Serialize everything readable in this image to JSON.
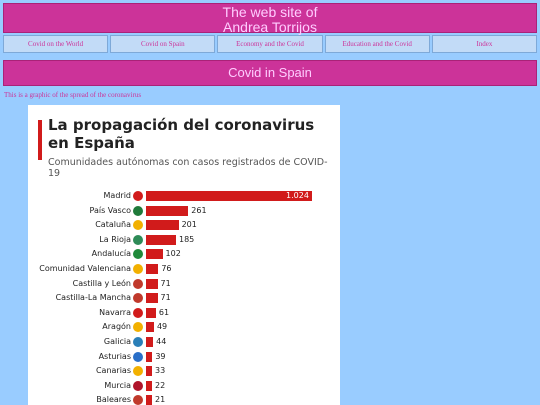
{
  "site": {
    "title_line1": "The web site of",
    "title_line2": "Andrea Torrijos"
  },
  "nav": {
    "items": [
      {
        "label": "Covid on the World"
      },
      {
        "label": "Covid on Spain"
      },
      {
        "label": "Economy and the Covid"
      },
      {
        "label": "Education and the Covid"
      },
      {
        "label": "Index"
      }
    ]
  },
  "section": {
    "title": "Covid in Spain",
    "intro": "This is a graphic of the spread of the coronavirus"
  },
  "colors": {
    "header_bg": "#cc3399",
    "page_bg": "#99ccff",
    "bar": "#d11b1b"
  },
  "chart_data": {
    "type": "bar",
    "title": "La propagación del coronavirus en España",
    "subtitle": "Comunidades autónomas con casos registrados de COVID-19",
    "categories": [
      "Madrid",
      "País Vasco",
      "Cataluña",
      "La Rioja",
      "Andalucía",
      "Comunidad Valenciana",
      "Castilla y León",
      "Castilla-La Mancha",
      "Navarra",
      "Aragón",
      "Galicia",
      "Asturias",
      "Canarias",
      "Murcia",
      "Baleares"
    ],
    "values": [
      1024,
      261,
      201,
      185,
      102,
      76,
      71,
      71,
      61,
      49,
      44,
      39,
      33,
      22,
      21
    ],
    "value_labels": [
      "1.024",
      "261",
      "201",
      "185",
      "102",
      "76",
      "71",
      "71",
      "61",
      "49",
      "44",
      "39",
      "33",
      "22",
      "21"
    ],
    "flag_colors": [
      "#d11b1b",
      "#1f7a3a",
      "#f2b000",
      "#2e8b57",
      "#1f8a3a",
      "#f2b000",
      "#c0392b",
      "#c0392b",
      "#d11b1b",
      "#f2b000",
      "#2a7fb8",
      "#2a6fc8",
      "#f2b000",
      "#b0142a",
      "#c0392b"
    ],
    "xlim": [
      0,
      1024
    ]
  }
}
